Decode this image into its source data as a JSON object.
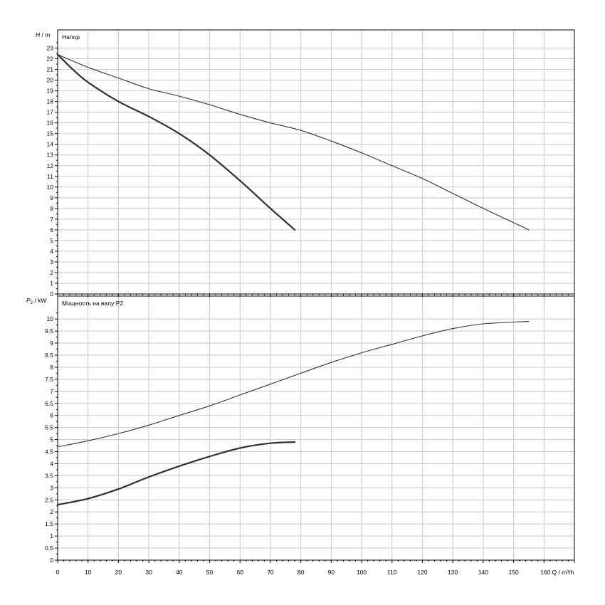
{
  "chart_data": [
    {
      "type": "line",
      "panel": "top",
      "title": "Напор",
      "ylabel_sym": "H",
      "ylabel_unit": " / m",
      "xlim": [
        0,
        170
      ],
      "ylim": [
        0,
        24.7
      ],
      "ytick_values": [
        0,
        1,
        2,
        3,
        4,
        5,
        6,
        7,
        8,
        9,
        10,
        11,
        12,
        13,
        14,
        15,
        16,
        17,
        18,
        19,
        20,
        21,
        22,
        23
      ],
      "series": [
        {
          "x": [
            0,
            5,
            10,
            20,
            30,
            40,
            50,
            60,
            70,
            78
          ],
          "y": [
            22.4,
            21.0,
            19.8,
            18.0,
            16.6,
            15.0,
            13.0,
            10.6,
            8.0,
            6.0
          ],
          "weight": "heavy"
        },
        {
          "x": [
            0,
            10,
            20,
            30,
            40,
            50,
            60,
            70,
            80,
            90,
            100,
            110,
            120,
            130,
            140,
            155
          ],
          "y": [
            22.4,
            21.2,
            20.2,
            19.2,
            18.5,
            17.7,
            16.8,
            16.0,
            15.3,
            14.3,
            13.2,
            12.0,
            10.8,
            9.4,
            8.0,
            6.0
          ],
          "weight": "light"
        }
      ]
    },
    {
      "type": "line",
      "panel": "bottom",
      "title": "Мощность на валу P2",
      "ylabel_sym": "P",
      "ylabel_sub": "2",
      "ylabel_unit": " / kW",
      "xlim": [
        0,
        170
      ],
      "ylim": [
        0,
        10.95
      ],
      "ytick_values": [
        0,
        0.5,
        1,
        1.5,
        2,
        2.5,
        3,
        3.5,
        4,
        4.5,
        5,
        5.5,
        6,
        6.5,
        7,
        7.5,
        8,
        8.5,
        9,
        9.5,
        10
      ],
      "ytick_labels": [
        "0",
        "0.5",
        "1",
        "1.5",
        "2",
        "2.5",
        "3",
        "3.5",
        "4",
        "4.5",
        "5",
        "5.5",
        "6",
        "6.5",
        "7",
        "7.5",
        "8",
        "8.5",
        "9",
        "9.5",
        "10"
      ],
      "xticks": [
        0,
        10,
        20,
        30,
        40,
        50,
        60,
        70,
        80,
        90,
        100,
        110,
        120,
        130,
        140,
        150
      ],
      "xtick_labels": [
        "0",
        "10",
        "20",
        "30",
        "40",
        "50",
        "60",
        "70",
        "80",
        "90",
        "100",
        "110",
        "120",
        "130",
        "140",
        "150"
      ],
      "xlabel": "160 Q / m³/h",
      "series": [
        {
          "x": [
            0,
            10,
            20,
            30,
            40,
            50,
            60,
            70,
            78
          ],
          "y": [
            2.3,
            2.55,
            2.95,
            3.45,
            3.9,
            4.3,
            4.65,
            4.85,
            4.9
          ],
          "weight": "heavy"
        },
        {
          "x": [
            0,
            10,
            20,
            30,
            40,
            50,
            60,
            70,
            80,
            90,
            100,
            110,
            120,
            130,
            140,
            155
          ],
          "y": [
            4.7,
            4.95,
            5.25,
            5.6,
            6.0,
            6.4,
            6.85,
            7.3,
            7.75,
            8.2,
            8.6,
            8.95,
            9.3,
            9.6,
            9.8,
            9.9
          ],
          "weight": "light"
        }
      ]
    }
  ]
}
